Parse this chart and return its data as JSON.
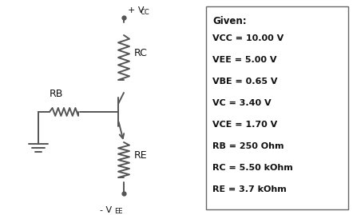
{
  "background_color": "#ffffff",
  "line_color": "#555555",
  "text_color": "#111111",
  "given_title": "Given:",
  "given_items": [
    "VCC = 10.00 V",
    "VEE = 5.00 V",
    "VBE = 0.65 V",
    "VC = 3.40 V",
    "VCE = 1.70 V",
    "RB = 250 Ohm",
    "RC = 5.50 kOhm",
    "RE = 3.7 kOhm"
  ],
  "label_RC": "RC",
  "label_RE": "RE",
  "label_RB": "RB",
  "vcc_label": "+ V",
  "vcc_sub": "CC",
  "vee_label": "- V",
  "vee_sub": "EE",
  "figsize": [
    4.42,
    2.69
  ],
  "dpi": 100
}
